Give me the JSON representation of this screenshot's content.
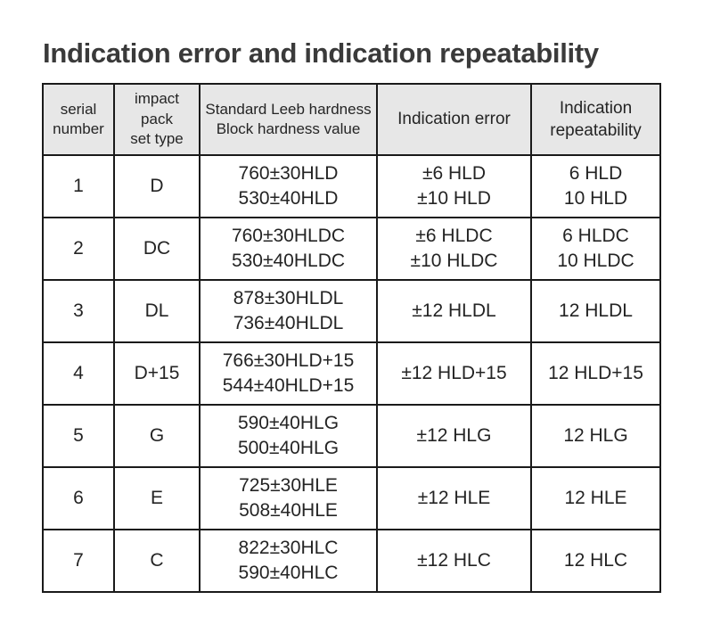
{
  "title": "Indication error and indication repeatability",
  "table": {
    "headers": {
      "serial": [
        "serial",
        "number"
      ],
      "type": [
        "impact pack",
        "set type"
      ],
      "hardness": [
        "Standard Leeb hardness",
        "Block hardness value"
      ],
      "error": [
        "Indication error"
      ],
      "repeatability": [
        "Indication",
        "repeatability"
      ]
    },
    "rows": [
      {
        "serial": "1",
        "type": "D",
        "hardness": [
          "760±30HLD",
          "530±40HLD"
        ],
        "error": [
          "±6 HLD",
          "±10 HLD"
        ],
        "repeatability": [
          "6 HLD",
          "10 HLD"
        ]
      },
      {
        "serial": "2",
        "type": "DC",
        "hardness": [
          "760±30HLDC",
          "530±40HLDC"
        ],
        "error": [
          "±6 HLDC",
          "±10 HLDC"
        ],
        "repeatability": [
          "6 HLDC",
          "10 HLDC"
        ]
      },
      {
        "serial": "3",
        "type": "DL",
        "hardness": [
          "878±30HLDL",
          "736±40HLDL"
        ],
        "error": [
          "±12 HLDL"
        ],
        "repeatability": [
          "12 HLDL"
        ]
      },
      {
        "serial": "4",
        "type": "D+15",
        "hardness": [
          "766±30HLD+15",
          "544±40HLD+15"
        ],
        "error": [
          "±12 HLD+15"
        ],
        "repeatability": [
          "12 HLD+15"
        ]
      },
      {
        "serial": "5",
        "type": "G",
        "hardness": [
          "590±40HLG",
          "500±40HLG"
        ],
        "error": [
          "±12 HLG"
        ],
        "repeatability": [
          "12 HLG"
        ]
      },
      {
        "serial": "6",
        "type": "E",
        "hardness": [
          "725±30HLE",
          "508±40HLE"
        ],
        "error": [
          "±12 HLE"
        ],
        "repeatability": [
          "12 HLE"
        ]
      },
      {
        "serial": "7",
        "type": "C",
        "hardness": [
          "822±30HLC",
          "590±40HLC"
        ],
        "error": [
          "±12 HLC"
        ],
        "repeatability": [
          "12 HLC"
        ]
      }
    ]
  },
  "colors": {
    "header_bg": "#e7e7e7",
    "border": "#1a1a1a",
    "body_text": "#242424",
    "title_text": "#3a3a3a",
    "page_bg": "#ffffff"
  }
}
